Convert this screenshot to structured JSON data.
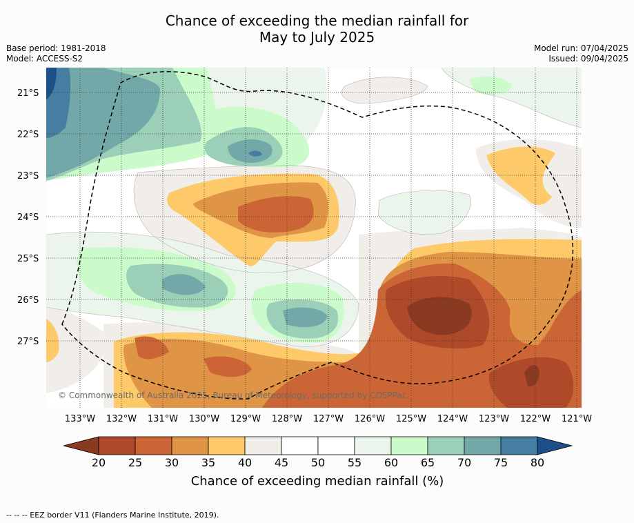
{
  "title_line1": "Chance of exceeding the median rainfall for",
  "title_line2": "May to July 2025",
  "meta_left": [
    "Base period: 1981-2018",
    "Model: ACCESS-S2"
  ],
  "meta_right": [
    "Model run: 07/04/2025",
    "Issued: 09/04/2025"
  ],
  "credit": "© Commonwealth of Australia 2025, Bureau of Meteorology, supported by COSPPac",
  "lon_labels": [
    "133°W",
    "132°W",
    "131°W",
    "130°W",
    "129°W",
    "128°W",
    "127°W",
    "126°W",
    "125°W",
    "124°W",
    "123°W",
    "122°W",
    "121°W"
  ],
  "lat_labels": [
    "21°S",
    "22°S",
    "23°S",
    "24°S",
    "25°S",
    "26°S",
    "27°S"
  ],
  "colorbar": {
    "ticks": [
      "20",
      "25",
      "30",
      "35",
      "40",
      "45",
      "50",
      "55",
      "60",
      "65",
      "70",
      "75",
      "80"
    ],
    "title": "Chance of exceeding median rainfall (%)",
    "colors": [
      "#8b3a22",
      "#ae4a2a",
      "#cc6535",
      "#e09446",
      "#fec968",
      "#f1ede9",
      "#ffffff",
      "#ffffff",
      "#ecf5ec",
      "#cbfacb",
      "#9bcfb8",
      "#73a8a8",
      "#457ea0",
      "#1d4f8a"
    ]
  },
  "footer": "-- -- -- EEZ border V11 (Flanders Marine Institute, 2019).",
  "colors": {
    "c20": "#8b3a22",
    "c25": "#ae4a2a",
    "c30": "#cc6535",
    "c35": "#e09446",
    "c40": "#fec968",
    "c45": "#f1ede9",
    "c55": "#ecf5ec",
    "c60": "#cbfacb",
    "c65": "#9bcfb8",
    "c70": "#73a8a8",
    "c75": "#457ea0",
    "c80": "#1d4f8a"
  }
}
